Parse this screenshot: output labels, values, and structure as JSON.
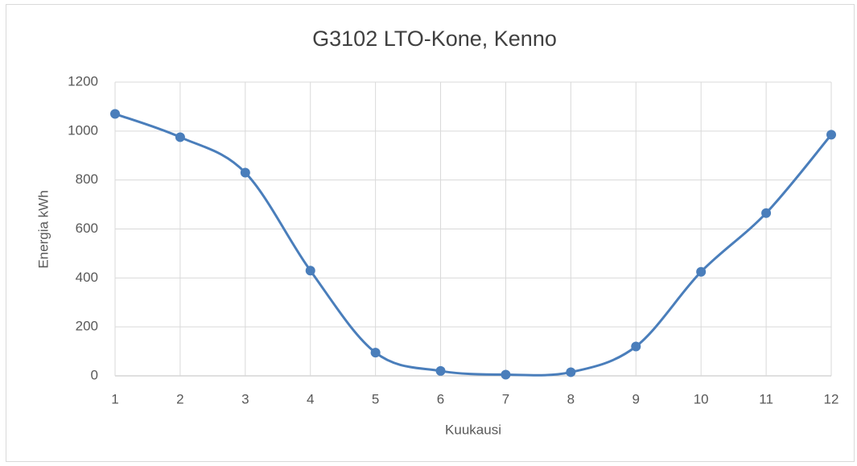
{
  "chart_data": {
    "type": "line",
    "title": "G3102 LTO-Kone, Kenno",
    "xlabel": "Kuukausi",
    "ylabel": "Energia kWh",
    "x": [
      1,
      2,
      3,
      4,
      5,
      6,
      7,
      8,
      9,
      10,
      11,
      12
    ],
    "series": [
      {
        "name": "Kenno",
        "color": "#4a7ebb",
        "values": [
          1070,
          975,
          830,
          430,
          95,
          20,
          5,
          15,
          120,
          425,
          665,
          985
        ]
      }
    ],
    "xlim": [
      1,
      12
    ],
    "xticks": [
      1,
      2,
      3,
      4,
      5,
      6,
      7,
      8,
      9,
      10,
      11,
      12
    ],
    "ylim": [
      0,
      1200
    ],
    "yticks": [
      0,
      200,
      400,
      600,
      800,
      1000,
      1200
    ],
    "grid": true,
    "smooth": true
  }
}
